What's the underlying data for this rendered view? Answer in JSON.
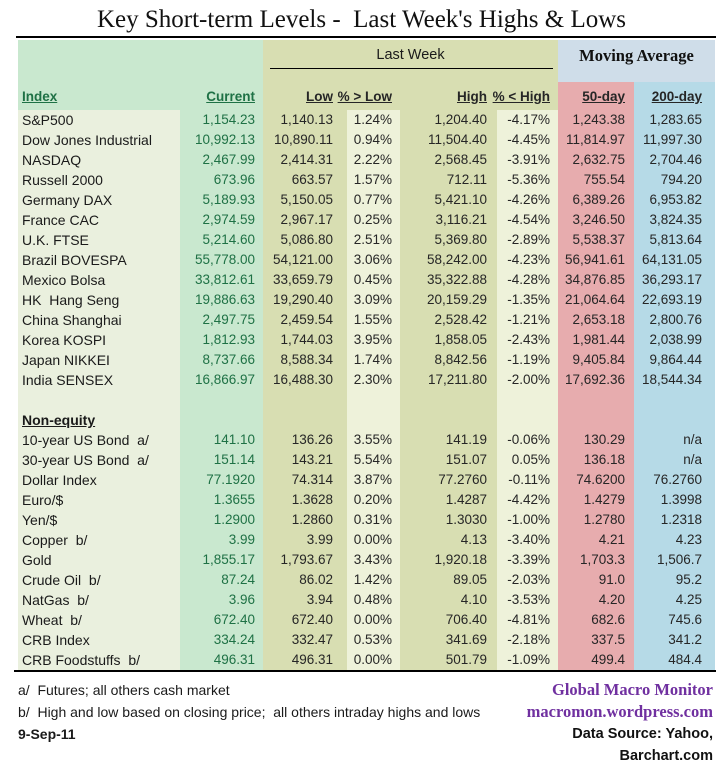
{
  "title": "Key Short-term Levels -  Last Week's Highs & Lows",
  "table": {
    "group_headers": {
      "last_week": "Last Week",
      "moving_average": "Moving Average"
    },
    "columns": [
      "Index",
      "Current",
      "Low",
      "% > Low",
      "High",
      "% < High",
      "50-day",
      "200-day"
    ],
    "sections": [
      {
        "label": "",
        "rows": [
          {
            "name": "S&P500",
            "current": "1,154.23",
            "low": "1,140.13",
            "pct_low": "1.24%",
            "high": "1,204.40",
            "pct_high": "-4.17%",
            "ma50": "1,243.38",
            "ma200": "1,283.65"
          },
          {
            "name": "Dow Jones Industrial",
            "current": "10,992.13",
            "low": "10,890.11",
            "pct_low": "0.94%",
            "high": "11,504.40",
            "pct_high": "-4.45%",
            "ma50": "11,814.97",
            "ma200": "11,997.30"
          },
          {
            "name": "NASDAQ",
            "current": "2,467.99",
            "low": "2,414.31",
            "pct_low": "2.22%",
            "high": "2,568.45",
            "pct_high": "-3.91%",
            "ma50": "2,632.75",
            "ma200": "2,704.46"
          },
          {
            "name": "Russell 2000",
            "current": "673.96",
            "low": "663.57",
            "pct_low": "1.57%",
            "high": "712.11",
            "pct_high": "-5.36%",
            "ma50": "755.54",
            "ma200": "794.20"
          },
          {
            "name": "Germany DAX",
            "current": "5,189.93",
            "low": "5,150.05",
            "pct_low": "0.77%",
            "high": "5,421.10",
            "pct_high": "-4.26%",
            "ma50": "6,389.26",
            "ma200": "6,953.82"
          },
          {
            "name": "France CAC",
            "current": "2,974.59",
            "low": "2,967.17",
            "pct_low": "0.25%",
            "high": "3,116.21",
            "pct_high": "-4.54%",
            "ma50": "3,246.50",
            "ma200": "3,824.35"
          },
          {
            "name": "U.K. FTSE",
            "current": "5,214.60",
            "low": "5,086.80",
            "pct_low": "2.51%",
            "high": "5,369.80",
            "pct_high": "-2.89%",
            "ma50": "5,538.37",
            "ma200": "5,813.64"
          },
          {
            "name": "Brazil BOVESPA",
            "current": "55,778.00",
            "low": "54,121.00",
            "pct_low": "3.06%",
            "high": "58,242.00",
            "pct_high": "-4.23%",
            "ma50": "56,941.61",
            "ma200": "64,131.05"
          },
          {
            "name": "Mexico Bolsa",
            "current": "33,812.61",
            "low": "33,659.79",
            "pct_low": "0.45%",
            "high": "35,322.88",
            "pct_high": "-4.28%",
            "ma50": "34,876.85",
            "ma200": "36,293.17"
          },
          {
            "name": "HK  Hang Seng",
            "current": "19,886.63",
            "low": "19,290.40",
            "pct_low": "3.09%",
            "high": "20,159.29",
            "pct_high": "-1.35%",
            "ma50": "21,064.64",
            "ma200": "22,693.19"
          },
          {
            "name": "China Shanghai",
            "current": "2,497.75",
            "low": "2,459.54",
            "pct_low": "1.55%",
            "high": "2,528.42",
            "pct_high": "-1.21%",
            "ma50": "2,653.18",
            "ma200": "2,800.76"
          },
          {
            "name": "Korea KOSPI",
            "current": "1,812.93",
            "low": "1,744.03",
            "pct_low": "3.95%",
            "high": "1,858.05",
            "pct_high": "-2.43%",
            "ma50": "1,981.44",
            "ma200": "2,038.99"
          },
          {
            "name": "Japan NIKKEI",
            "current": "8,737.66",
            "low": "8,588.34",
            "pct_low": "1.74%",
            "high": "8,842.56",
            "pct_high": "-1.19%",
            "ma50": "9,405.84",
            "ma200": "9,864.44"
          },
          {
            "name": "India SENSEX",
            "current": "16,866.97",
            "low": "16,488.30",
            "pct_low": "2.30%",
            "high": "17,211.80",
            "pct_high": "-2.00%",
            "ma50": "17,692.36",
            "ma200": "18,544.34"
          }
        ]
      },
      {
        "label": "Non-equity",
        "rows": [
          {
            "name": "10-year US Bond  a/",
            "current": "141.10",
            "low": "136.26",
            "pct_low": "3.55%",
            "high": "141.19",
            "pct_high": "-0.06%",
            "ma50": "130.29",
            "ma200": "n/a"
          },
          {
            "name": "30-year US Bond  a/",
            "current": "151.14",
            "low": "143.21",
            "pct_low": "5.54%",
            "high": "151.07",
            "pct_high": "0.05%",
            "ma50": "136.18",
            "ma200": "n/a"
          },
          {
            "name": "Dollar Index",
            "current": "77.1920",
            "low": "74.314",
            "pct_low": "3.87%",
            "high": "77.2760",
            "pct_high": "-0.11%",
            "ma50": "74.6200",
            "ma200": "76.2760"
          },
          {
            "name": "Euro/$",
            "current": "1.3655",
            "low": "1.3628",
            "pct_low": "0.20%",
            "high": "1.4287",
            "pct_high": "-4.42%",
            "ma50": "1.4279",
            "ma200": "1.3998"
          },
          {
            "name": "Yen/$",
            "current": "1.2900",
            "low": "1.2860",
            "pct_low": "0.31%",
            "high": "1.3030",
            "pct_high": "-1.00%",
            "ma50": "1.2780",
            "ma200": "1.2318"
          },
          {
            "name": "Copper  b/",
            "current": "3.99",
            "low": "3.99",
            "pct_low": "0.00%",
            "high": "4.13",
            "pct_high": "-3.40%",
            "ma50": "4.21",
            "ma200": "4.23"
          },
          {
            "name": "Gold",
            "current": "1,855.17",
            "low": "1,793.67",
            "pct_low": "3.43%",
            "high": "1,920.18",
            "pct_high": "-3.39%",
            "ma50": "1,703.3",
            "ma200": "1,506.7"
          },
          {
            "name": "Crude Oil  b/",
            "current": "87.24",
            "low": "86.02",
            "pct_low": "1.42%",
            "high": "89.05",
            "pct_high": "-2.03%",
            "ma50": "91.0",
            "ma200": "95.2"
          },
          {
            "name": "NatGas  b/",
            "current": "3.96",
            "low": "3.94",
            "pct_low": "0.48%",
            "high": "4.10",
            "pct_high": "-3.53%",
            "ma50": "4.20",
            "ma200": "4.25"
          },
          {
            "name": "Wheat  b/",
            "current": "672.40",
            "low": "672.40",
            "pct_low": "0.00%",
            "high": "706.40",
            "pct_high": "-4.81%",
            "ma50": "682.6",
            "ma200": "745.6"
          },
          {
            "name": "CRB Index",
            "current": "334.24",
            "low": "332.47",
            "pct_low": "0.53%",
            "high": "341.69",
            "pct_high": "-2.18%",
            "ma50": "337.5",
            "ma200": "341.2"
          },
          {
            "name": "CRB Foodstuffs  b/",
            "current": "496.31",
            "low": "496.31",
            "pct_low": "0.00%",
            "high": "501.79",
            "pct_high": "-1.09%",
            "ma50": "499.4",
            "ma200": "484.4"
          }
        ]
      }
    ]
  },
  "footnotes": {
    "a": "a/  Futures; all others cash market",
    "b": "b/  High and low based on closing price;  all others intraday highs and lows",
    "date": "9-Sep-11"
  },
  "attribution": {
    "brand": "Global Macro Monitor",
    "url": "macromon.wordpress.com",
    "data_source": "Data Source: Yahoo, Barchart.com"
  },
  "colors": {
    "index_col_bg": "#eaf0de",
    "current_col_bg": "#c9e8cf",
    "last_week_band_bg": "#d8deb2",
    "pct_col_bg": "#eef2da",
    "ma50_col_bg": "#e7acae",
    "ma200_col_bg": "#b6dae7",
    "moving_average_band_bg": "#cfdde9",
    "green_text": "#1e7145",
    "brand_purple": "#7030a0"
  }
}
